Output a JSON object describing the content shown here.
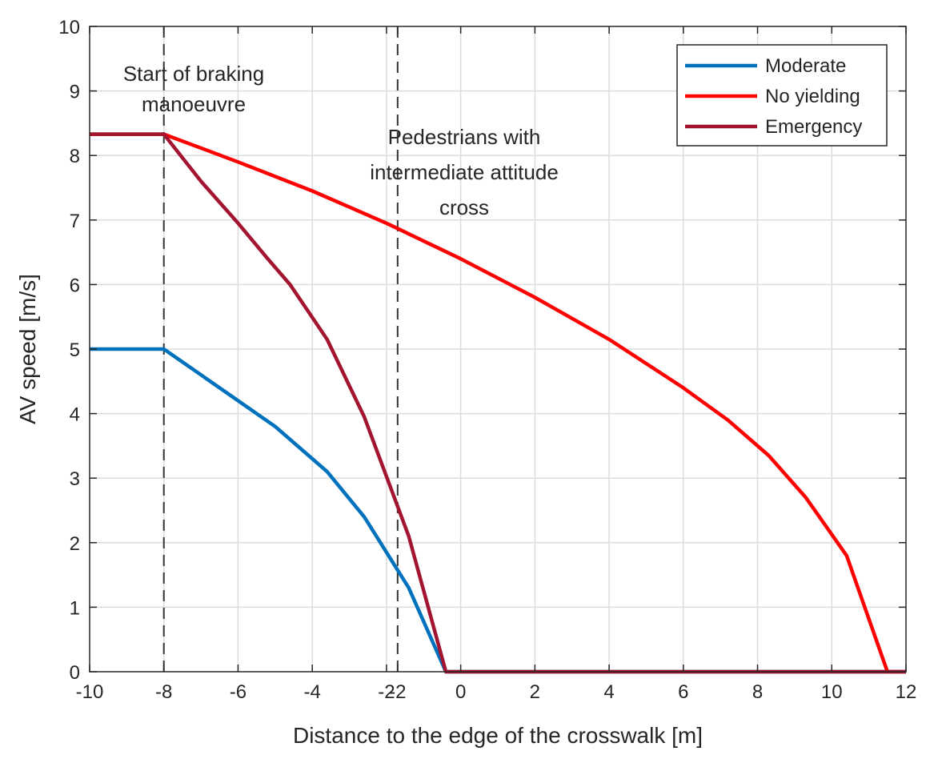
{
  "chart_data": {
    "type": "line",
    "title": "",
    "xlabel": "Distance to the edge of the crosswalk [m]",
    "ylabel": "AV speed [m/s]",
    "xlim": [
      -10,
      12
    ],
    "ylim": [
      0,
      10
    ],
    "xticks": [
      -10,
      -8,
      -6,
      -4,
      -2,
      0,
      2,
      4,
      6,
      8,
      10,
      12
    ],
    "xtick_labels": [
      "-10",
      "-8",
      "-6",
      "-4",
      "-2",
      "0",
      "2",
      "4",
      "6",
      "8",
      "10",
      "12"
    ],
    "yticks": [
      0,
      1,
      2,
      3,
      4,
      5,
      6,
      7,
      8,
      9,
      10
    ],
    "ytick_labels": [
      "0",
      "1",
      "2",
      "3",
      "4",
      "5",
      "6",
      "7",
      "8",
      "9",
      "10"
    ],
    "extra_xtick": -1.7,
    "extra_xtick_label": "-2",
    "grid": true,
    "legend_position": "top-right",
    "series": [
      {
        "name": "Moderate",
        "color": "#0072bd",
        "x": [
          -10,
          -8,
          -7,
          -6,
          -5,
          -4,
          -3.6,
          -2.6,
          -1.4,
          -0.4,
          12
        ],
        "y": [
          5,
          5,
          4.6,
          4.2,
          3.8,
          3.3,
          3.1,
          2.4,
          1.3,
          0,
          0
        ]
      },
      {
        "name": "No yielding",
        "color": "#ff0000",
        "x": [
          -10,
          -8,
          -6,
          -4,
          -2,
          0,
          2,
          4,
          6,
          7.2,
          8.3,
          9.3,
          10.4,
          11.5,
          12
        ],
        "y": [
          8.33,
          8.33,
          7.9,
          7.45,
          6.95,
          6.4,
          5.8,
          5.15,
          4.4,
          3.9,
          3.35,
          2.7,
          1.8,
          0,
          0
        ]
      },
      {
        "name": "Emergency",
        "color": "#a2142f",
        "x": [
          -10,
          -8,
          -7,
          -6,
          -5.2,
          -4.6,
          -3.6,
          -2.6,
          -1.4,
          -0.4,
          12
        ],
        "y": [
          8.33,
          8.33,
          7.6,
          6.95,
          6.4,
          6.0,
          5.15,
          3.95,
          2.1,
          0,
          0
        ]
      }
    ],
    "vlines": [
      {
        "x": -8,
        "style": "dashed"
      },
      {
        "x": -1.7,
        "style": "dashed"
      }
    ],
    "annotations": [
      {
        "lines": [
          "Start of braking",
          "manoeuvre"
        ]
      },
      {
        "lines": [
          "Pedestrians with",
          "intermediate attitude",
          "cross"
        ]
      }
    ]
  }
}
